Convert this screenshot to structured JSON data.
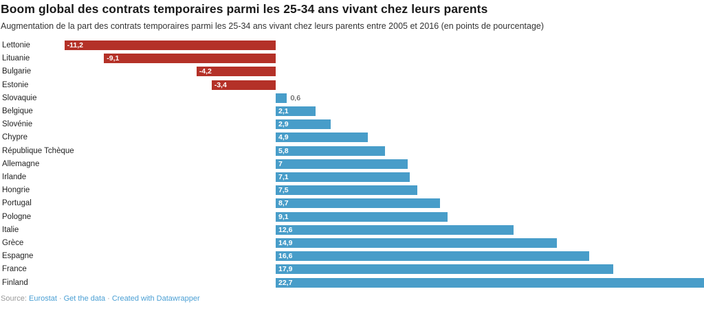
{
  "header": {
    "title": "Boom global des contrats temporaires parmi les 25-34 ans vivant chez leurs parents",
    "subtitle": "Augmentation de la part des contrats temporaires parmi les 25-34 ans vivant chez leurs parents entre 2005 et 2016 (en points de pourcentage)"
  },
  "colors": {
    "positive_bar": "#489dc9",
    "negative_bar": "#b43128",
    "label_inside": "#ffffff",
    "label_outside": "#333333",
    "link": "#4a9fd4",
    "source_text": "#999999"
  },
  "chart_data": {
    "type": "bar",
    "orientation": "horizontal",
    "title": "Boom global des contrats temporaires parmi les 25-34 ans vivant chez leurs parents",
    "xlabel": "",
    "ylabel": "",
    "unit": "points de pourcentage",
    "xlim": [
      -11.2,
      22.7
    ],
    "grid": false,
    "legend": false,
    "categories": [
      "Lettonie",
      "Lituanie",
      "Bulgarie",
      "Estonie",
      "Slovaquie",
      "Belgique",
      "Slovénie",
      "Chypre",
      "République Tchèque",
      "Allemagne",
      "Irlande",
      "Hongrie",
      "Portugal",
      "Pologne",
      "Italie",
      "Grèce",
      "Espagne",
      "France",
      "Finland"
    ],
    "values": [
      -11.2,
      -9.1,
      -4.2,
      -3.4,
      0.6,
      2.1,
      2.9,
      4.9,
      5.8,
      7,
      7.1,
      7.5,
      8.7,
      9.1,
      12.6,
      14.9,
      16.6,
      17.9,
      22.7
    ],
    "value_labels": [
      "-11,2",
      "-9,1",
      "-4,2",
      "-3,4",
      "0,6",
      "2,1",
      "2,9",
      "4,9",
      "5,8",
      "7",
      "7,1",
      "7,5",
      "8,7",
      "9,1",
      "12,6",
      "14,9",
      "16,6",
      "17,9",
      "22,7"
    ]
  },
  "footer": {
    "source_label": "Source:",
    "separator": "·",
    "links": [
      "Eurostat",
      "Get the data",
      "Created with Datawrapper"
    ]
  }
}
